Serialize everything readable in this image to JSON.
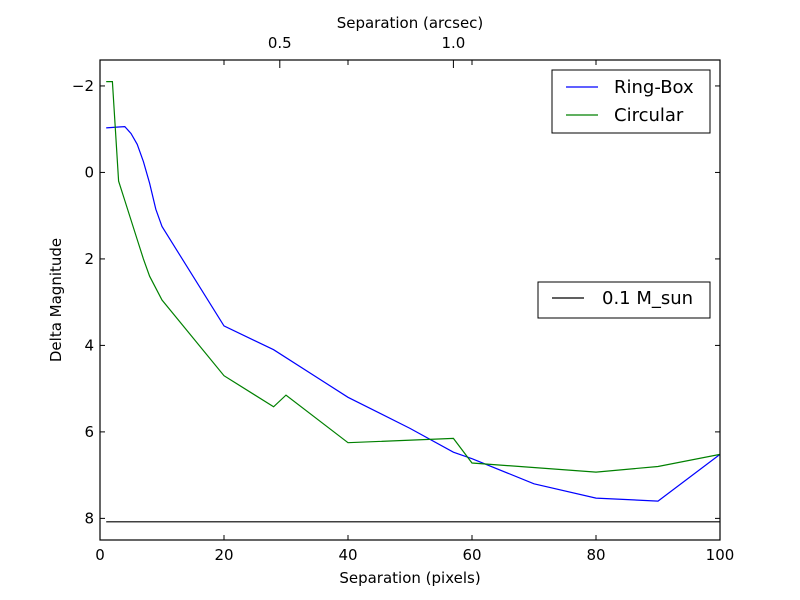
{
  "chart_data": {
    "type": "line",
    "xlabel": "Separation (pixels)",
    "ylabel": "Delta Magnitude",
    "top_xlabel": "Separation (arcsec)",
    "xlim": [
      0,
      100
    ],
    "ylim": [
      8.5,
      -2.6
    ],
    "xticks": [
      0,
      20,
      40,
      60,
      80,
      100
    ],
    "yticks": [
      -2,
      0,
      2,
      4,
      6,
      8
    ],
    "yticklabels": [
      "−2",
      "0",
      "2",
      "4",
      "6",
      "8"
    ],
    "top_ticks": [
      {
        "x": 29.0,
        "label": "0.5"
      },
      {
        "x": 57.0,
        "label": "1.0"
      }
    ],
    "legend_main": {
      "placement": "top-right"
    },
    "legend_limit": {
      "placement": "center-right"
    },
    "series": [
      {
        "name": "Ring-Box",
        "color": "#0000ff",
        "x": [
          1,
          3,
          4,
          5,
          6,
          7,
          8,
          9,
          10,
          20,
          28,
          40,
          50,
          57,
          60,
          70,
          80,
          90,
          100
        ],
        "y": [
          -1.03,
          -1.05,
          -1.06,
          -0.9,
          -0.65,
          -0.25,
          0.25,
          0.85,
          1.25,
          3.55,
          4.1,
          5.2,
          5.92,
          6.47,
          6.62,
          7.2,
          7.53,
          7.6,
          6.52
        ]
      },
      {
        "name": "Circular",
        "color": "#008000",
        "x": [
          1,
          2,
          3,
          4,
          5,
          6,
          7,
          8,
          10,
          20,
          28,
          30,
          40,
          57,
          60,
          80,
          90,
          100
        ],
        "y": [
          -2.1,
          -2.1,
          0.2,
          0.65,
          1.1,
          1.55,
          2.0,
          2.4,
          2.95,
          4.7,
          5.42,
          5.15,
          6.25,
          6.15,
          6.72,
          6.93,
          6.8,
          6.52
        ]
      },
      {
        "name": "0.1 M_sun",
        "color": "#000000",
        "x": [
          1,
          100
        ],
        "y": [
          8.08,
          8.08
        ]
      }
    ]
  }
}
